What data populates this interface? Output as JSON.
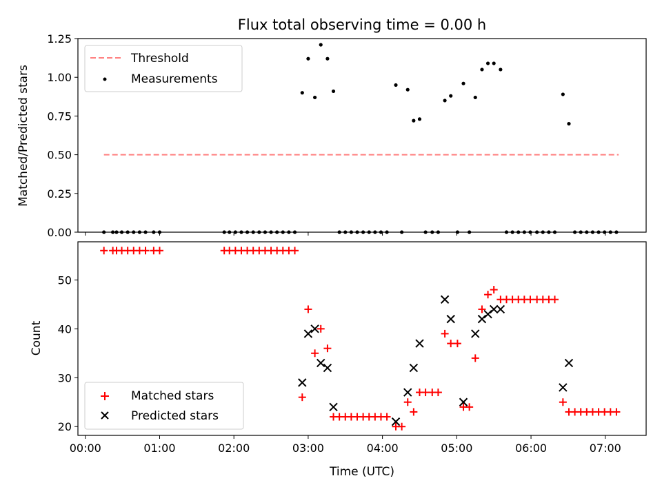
{
  "chart_data": [
    {
      "type": "scatter",
      "title": "Flux total observing time = 0.00 h",
      "ylabel": "Matched/Predicted stars",
      "xlabel": "",
      "x_unit": "hours UTC",
      "xlim": [
        -0.1,
        7.55
      ],
      "ylim": [
        0,
        1.25
      ],
      "yticks": [
        0.0,
        0.25,
        0.5,
        0.75,
        1.0,
        1.25
      ],
      "ytick_labels": [
        "0.00",
        "0.25",
        "0.50",
        "0.75",
        "1.00",
        "1.25"
      ],
      "legend_position": "upper-left",
      "series": [
        {
          "name": "Threshold",
          "style": "dashed-line",
          "color": "#ff7f7f",
          "x": [
            0.25,
            7.18
          ],
          "y": [
            0.5,
            0.5
          ]
        },
        {
          "name": "Measurements",
          "style": "dot",
          "color": "#000000",
          "points": [
            [
              0.25,
              0.0
            ],
            [
              0.37,
              0.0
            ],
            [
              0.42,
              0.0
            ],
            [
              0.49,
              0.0
            ],
            [
              0.57,
              0.0
            ],
            [
              0.65,
              0.0
            ],
            [
              0.73,
              0.0
            ],
            [
              0.81,
              0.0
            ],
            [
              0.92,
              0.0
            ],
            [
              1.0,
              0.0
            ],
            [
              1.87,
              0.0
            ],
            [
              1.94,
              0.0
            ],
            [
              2.02,
              0.0
            ],
            [
              2.1,
              0.0
            ],
            [
              2.18,
              0.0
            ],
            [
              2.26,
              0.0
            ],
            [
              2.34,
              0.0
            ],
            [
              2.42,
              0.0
            ],
            [
              2.5,
              0.0
            ],
            [
              2.58,
              0.0
            ],
            [
              2.66,
              0.0
            ],
            [
              2.74,
              0.0
            ],
            [
              2.82,
              0.0
            ],
            [
              2.92,
              0.9
            ],
            [
              3.0,
              1.12
            ],
            [
              3.09,
              0.87
            ],
            [
              3.17,
              1.21
            ],
            [
              3.26,
              1.12
            ],
            [
              3.34,
              0.91
            ],
            [
              3.42,
              0.0
            ],
            [
              3.5,
              0.0
            ],
            [
              3.58,
              0.0
            ],
            [
              3.66,
              0.0
            ],
            [
              3.74,
              0.0
            ],
            [
              3.82,
              0.0
            ],
            [
              3.9,
              0.0
            ],
            [
              3.98,
              0.0
            ],
            [
              4.06,
              0.0
            ],
            [
              4.18,
              0.95
            ],
            [
              4.26,
              0.0
            ],
            [
              4.34,
              0.92
            ],
            [
              4.42,
              0.72
            ],
            [
              4.5,
              0.73
            ],
            [
              4.58,
              0.0
            ],
            [
              4.67,
              0.0
            ],
            [
              4.75,
              0.0
            ],
            [
              4.84,
              0.85
            ],
            [
              4.92,
              0.88
            ],
            [
              5.01,
              0.0
            ],
            [
              5.09,
              0.96
            ],
            [
              5.17,
              0.0
            ],
            [
              5.25,
              0.87
            ],
            [
              5.34,
              1.05
            ],
            [
              5.42,
              1.09
            ],
            [
              5.5,
              1.09
            ],
            [
              5.59,
              1.05
            ],
            [
              5.67,
              0.0
            ],
            [
              5.75,
              0.0
            ],
            [
              5.83,
              0.0
            ],
            [
              5.91,
              0.0
            ],
            [
              5.99,
              0.0
            ],
            [
              6.08,
              0.0
            ],
            [
              6.16,
              0.0
            ],
            [
              6.24,
              0.0
            ],
            [
              6.32,
              0.0
            ],
            [
              6.43,
              0.89
            ],
            [
              6.51,
              0.7
            ],
            [
              6.59,
              0.0
            ],
            [
              6.67,
              0.0
            ],
            [
              6.75,
              0.0
            ],
            [
              6.83,
              0.0
            ],
            [
              6.91,
              0.0
            ],
            [
              6.99,
              0.0
            ],
            [
              7.07,
              0.0
            ],
            [
              7.15,
              0.0
            ]
          ]
        }
      ]
    },
    {
      "type": "scatter",
      "title": "",
      "ylabel": "Count",
      "xlabel": "Time (UTC)",
      "x_unit": "hours UTC",
      "xlim": [
        -0.1,
        7.55
      ],
      "ylim": [
        18.2,
        57.8
      ],
      "yticks": [
        20,
        30,
        40,
        50
      ],
      "ytick_labels": [
        "20",
        "30",
        "40",
        "50"
      ],
      "xticks": [
        0,
        1,
        2,
        3,
        4,
        5,
        6,
        7
      ],
      "xtick_labels": [
        "00:00",
        "01:00",
        "02:00",
        "03:00",
        "04:00",
        "05:00",
        "06:00",
        "07:00"
      ],
      "legend_position": "lower-left",
      "series": [
        {
          "name": "Matched stars",
          "marker": "plus",
          "color": "#ff0000",
          "points": [
            [
              0.25,
              56
            ],
            [
              0.37,
              56
            ],
            [
              0.42,
              56
            ],
            [
              0.49,
              56
            ],
            [
              0.57,
              56
            ],
            [
              0.65,
              56
            ],
            [
              0.73,
              56
            ],
            [
              0.81,
              56
            ],
            [
              0.92,
              56
            ],
            [
              1.0,
              56
            ],
            [
              1.87,
              56
            ],
            [
              1.94,
              56
            ],
            [
              2.02,
              56
            ],
            [
              2.1,
              56
            ],
            [
              2.18,
              56
            ],
            [
              2.26,
              56
            ],
            [
              2.34,
              56
            ],
            [
              2.42,
              56
            ],
            [
              2.5,
              56
            ],
            [
              2.58,
              56
            ],
            [
              2.66,
              56
            ],
            [
              2.74,
              56
            ],
            [
              2.82,
              56
            ],
            [
              2.92,
              26
            ],
            [
              3.0,
              44
            ],
            [
              3.09,
              35
            ],
            [
              3.17,
              40
            ],
            [
              3.26,
              36
            ],
            [
              3.34,
              22
            ],
            [
              3.42,
              22
            ],
            [
              3.5,
              22
            ],
            [
              3.58,
              22
            ],
            [
              3.66,
              22
            ],
            [
              3.74,
              22
            ],
            [
              3.82,
              22
            ],
            [
              3.9,
              22
            ],
            [
              3.98,
              22
            ],
            [
              4.06,
              22
            ],
            [
              4.18,
              20
            ],
            [
              4.26,
              20
            ],
            [
              4.34,
              25
            ],
            [
              4.42,
              23
            ],
            [
              4.5,
              27
            ],
            [
              4.58,
              27
            ],
            [
              4.67,
              27
            ],
            [
              4.75,
              27
            ],
            [
              4.84,
              39
            ],
            [
              4.92,
              37
            ],
            [
              5.01,
              37
            ],
            [
              5.09,
              24
            ],
            [
              5.17,
              24
            ],
            [
              5.25,
              34
            ],
            [
              5.34,
              44
            ],
            [
              5.42,
              47
            ],
            [
              5.5,
              48
            ],
            [
              5.59,
              46
            ],
            [
              5.67,
              46
            ],
            [
              5.75,
              46
            ],
            [
              5.83,
              46
            ],
            [
              5.91,
              46
            ],
            [
              5.99,
              46
            ],
            [
              6.08,
              46
            ],
            [
              6.16,
              46
            ],
            [
              6.24,
              46
            ],
            [
              6.32,
              46
            ],
            [
              6.43,
              25
            ],
            [
              6.51,
              23
            ],
            [
              6.59,
              23
            ],
            [
              6.67,
              23
            ],
            [
              6.75,
              23
            ],
            [
              6.83,
              23
            ],
            [
              6.91,
              23
            ],
            [
              6.99,
              23
            ],
            [
              7.07,
              23
            ],
            [
              7.15,
              23
            ]
          ]
        },
        {
          "name": "Predicted stars",
          "marker": "x",
          "color": "#000000",
          "points": [
            [
              2.92,
              29
            ],
            [
              3.0,
              39
            ],
            [
              3.09,
              40
            ],
            [
              3.17,
              33
            ],
            [
              3.26,
              32
            ],
            [
              3.34,
              24
            ],
            [
              4.18,
              21
            ],
            [
              4.34,
              27
            ],
            [
              4.42,
              32
            ],
            [
              4.5,
              37
            ],
            [
              4.84,
              46
            ],
            [
              4.92,
              42
            ],
            [
              5.09,
              25
            ],
            [
              5.25,
              39
            ],
            [
              5.34,
              42
            ],
            [
              5.42,
              43
            ],
            [
              5.5,
              44
            ],
            [
              5.59,
              44
            ],
            [
              6.43,
              28
            ],
            [
              6.51,
              33
            ]
          ]
        }
      ]
    }
  ]
}
